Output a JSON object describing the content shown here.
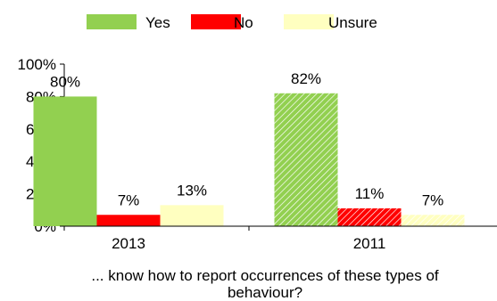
{
  "chart_data": {
    "type": "bar",
    "categories": [
      "2013",
      "2011"
    ],
    "series": [
      {
        "name": "Yes",
        "values": [
          80,
          82
        ],
        "labels": [
          "80%",
          "82%"
        ]
      },
      {
        "name": "No",
        "values": [
          7,
          11
        ],
        "labels": [
          "7%",
          "11%"
        ]
      },
      {
        "name": "Unsure",
        "values": [
          13,
          7
        ],
        "labels": [
          "13%",
          "7%"
        ]
      }
    ],
    "hatched_categories": [
      "2011"
    ],
    "ylim": [
      0,
      100
    ],
    "yticks": [
      0,
      20,
      40,
      60,
      80,
      100
    ],
    "ytick_labels": [
      "0%",
      "20%",
      "40%",
      "60%",
      "80%",
      "100%"
    ],
    "grid": false,
    "legend_position": "top",
    "caption_lines": [
      "... know how to report occurrences of these types of",
      "behaviour?"
    ],
    "colors": {
      "Yes": "#92d050",
      "No": "#ff0000",
      "Unsure": "#ffffc0"
    }
  }
}
